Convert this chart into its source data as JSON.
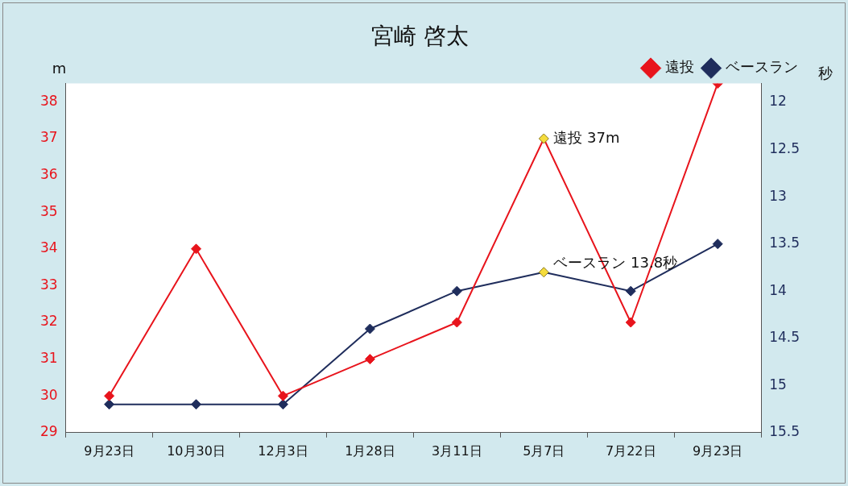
{
  "chart_data": {
    "type": "line",
    "title": "宮崎 啓太",
    "ylabel": "m",
    "y2label": "秒",
    "categories": [
      "9月23日",
      "10月30日",
      "12月3日",
      "1月28日",
      "3月11日",
      "5月7日",
      "7月22日",
      "9月23日"
    ],
    "series": [
      {
        "name": "遠投",
        "color": "#e8141c",
        "colors": [
          "#e8141c",
          "#e8141c",
          "#e8141c",
          "#e8141c",
          "#e8141c",
          "#f5dc3c",
          "#e8141c",
          "#e8141c"
        ],
        "values": [
          30,
          34,
          30,
          31,
          32,
          37,
          32,
          38.5
        ]
      },
      {
        "name": "ベースラン",
        "color": "#1f2d5c",
        "axis": "y2",
        "colors": [
          "#1f2d5c",
          "#1f2d5c",
          "#1f2d5c",
          "#1f2d5c",
          "#1f2d5c",
          "#f5dc3c",
          "#1f2d5c",
          "#1f2d5c"
        ],
        "values": [
          15.2,
          15.2,
          15.2,
          14.4,
          14.0,
          13.8,
          14.0,
          13.5
        ]
      }
    ],
    "ylim": [
      29,
      38.5
    ],
    "yticks": [
      29,
      30,
      31,
      32,
      33,
      34,
      35,
      36,
      37,
      38
    ],
    "y2lim": [
      15.5,
      11.8
    ],
    "y2ticks": [
      12,
      12.5,
      13,
      13.5,
      14,
      14.5,
      15,
      15.5
    ],
    "annotations": [
      {
        "text": "遠投 37m",
        "x": "5月7日",
        "y": 37
      },
      "ベースラン 13.8秒"
    ],
    "legend": "top right",
    "grid": false,
    "marker": "diamond",
    "line_style": "solid"
  }
}
